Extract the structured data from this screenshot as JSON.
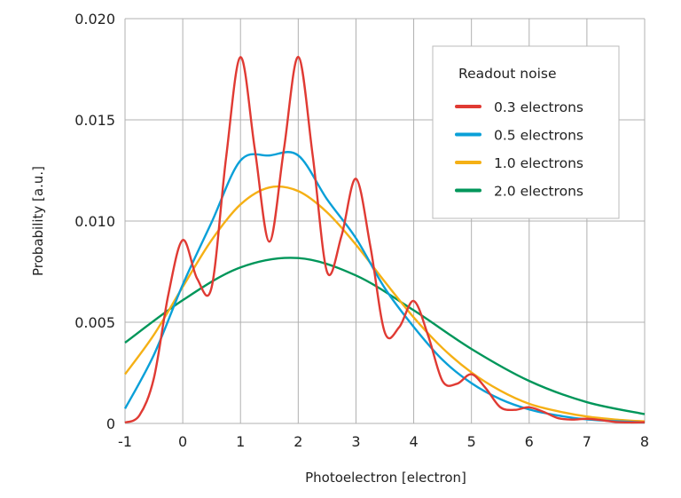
{
  "chart_data": {
    "type": "line",
    "title": "",
    "xlabel": "Photoelectron [electron]",
    "ylabel": "Probability [a.u.]",
    "xlim": [
      -1,
      8
    ],
    "ylim": [
      0,
      0.02
    ],
    "xticks": [
      "-1",
      "0",
      "1",
      "2",
      "3",
      "4",
      "5",
      "6",
      "7",
      "8"
    ],
    "yticks": [
      "0",
      "0.005",
      "0.010",
      "0.015",
      "0.020"
    ],
    "grid": true,
    "legend": {
      "title": "Readout noise",
      "placement": "top-right"
    },
    "series": [
      {
        "name": "0.3 electrons",
        "color": "#e03a33",
        "x": [
          -1,
          -0.75,
          -0.5,
          -0.25,
          0,
          0.25,
          0.5,
          0.75,
          1,
          1.25,
          1.5,
          1.75,
          2,
          2.25,
          2.5,
          2.75,
          3,
          3.25,
          3.5,
          3.75,
          4,
          4.25,
          4.5,
          4.75,
          5,
          5.25,
          5.5,
          5.75,
          6,
          6.25,
          6.5,
          6.75,
          7,
          7.25,
          7.5,
          7.75,
          8
        ],
        "y": [
          4e-05,
          0.0004,
          0.00224,
          0.00636,
          0.00906,
          0.00715,
          0.00673,
          0.01312,
          0.0181,
          0.01351,
          0.00898,
          0.01351,
          0.01811,
          0.01325,
          0.00748,
          0.00927,
          0.01209,
          0.00874,
          0.00449,
          0.00476,
          0.00605,
          0.00434,
          0.00209,
          0.00196,
          0.00243,
          0.00173,
          0.0008,
          0.00067,
          0.0008,
          0.00057,
          0.00026,
          0.00019,
          0.00023,
          0.00016,
          7e-05,
          5e-05,
          6e-05
        ]
      },
      {
        "name": "0.5 electrons",
        "color": "#0aa0d8",
        "x": [
          -1,
          -0.5,
          0,
          0.5,
          1,
          1.5,
          2,
          2.5,
          3,
          3.5,
          4,
          4.5,
          5,
          5.5,
          6,
          6.5,
          7,
          7.5,
          8
        ],
        "y": [
          0.00073,
          0.00339,
          0.00686,
          0.00994,
          0.01299,
          0.01324,
          0.01324,
          0.01107,
          0.00915,
          0.00668,
          0.00477,
          0.00314,
          0.00199,
          0.0012,
          0.00069,
          0.00039,
          0.0002,
          0.00011,
          5e-05
        ]
      },
      {
        "name": "1.0 electrons",
        "color": "#f5b015",
        "x": [
          -1,
          -0.5,
          0,
          0.5,
          1,
          1.5,
          2,
          2.5,
          3,
          3.5,
          4,
          4.5,
          5,
          5.5,
          6,
          6.5,
          7,
          7.5,
          8
        ],
        "y": [
          0.00243,
          0.00438,
          0.00675,
          0.00906,
          0.01082,
          0.01166,
          0.01148,
          0.01043,
          0.00883,
          0.007,
          0.00524,
          0.00372,
          0.00252,
          0.00162,
          0.00097,
          0.0006,
          0.00034,
          0.00019,
          0.0001
        ]
      },
      {
        "name": "2.0 electrons",
        "color": "#00965a",
        "x": [
          -1,
          0,
          1,
          2,
          3,
          4,
          5,
          6,
          7,
          8
        ],
        "y": [
          0.00399,
          0.00609,
          0.00771,
          0.00817,
          0.00731,
          0.00559,
          0.00368,
          0.0021,
          0.00105,
          0.00046
        ]
      }
    ]
  }
}
